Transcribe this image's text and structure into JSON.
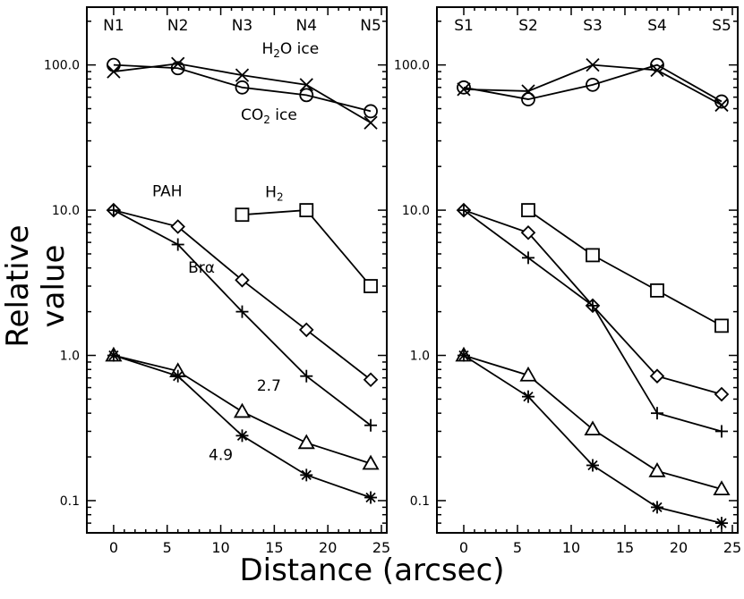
{
  "ylabel": "Relative value",
  "xlabel": "Distance (arcsec)",
  "chart_data": [
    {
      "type": "line",
      "panel": "north",
      "yscale": "log",
      "ylim": [
        0.06,
        250
      ],
      "xlim": [
        -2.5,
        25.5
      ],
      "xticks": [
        0,
        5,
        10,
        15,
        20,
        25
      ],
      "yticks": [
        0.1,
        1.0,
        10.0,
        100.0
      ],
      "ytick_labels": [
        "0.1",
        "1.0",
        "10.0",
        "100.0"
      ],
      "top_labels": [
        {
          "x": 0,
          "text": "N1"
        },
        {
          "x": 6,
          "text": "N2"
        },
        {
          "x": 12,
          "text": "N3"
        },
        {
          "x": 18,
          "text": "N4"
        },
        {
          "x": 24,
          "text": "N5"
        }
      ],
      "series": [
        {
          "name": "H2O ice",
          "marker": "x",
          "x": [
            0,
            6,
            12,
            18,
            24
          ],
          "y": [
            90,
            102,
            85,
            73,
            40
          ]
        },
        {
          "name": "CO2 ice",
          "marker": "circle",
          "x": [
            0,
            6,
            12,
            18,
            24
          ],
          "y": [
            100,
            95,
            70,
            62,
            48
          ]
        },
        {
          "name": "H2",
          "marker": "square",
          "x": [
            12,
            18,
            24
          ],
          "y": [
            9.3,
            10.0,
            3.0
          ]
        },
        {
          "name": "PAH",
          "marker": "diamond",
          "x": [
            0,
            6,
            12,
            18,
            24
          ],
          "y": [
            10.0,
            7.7,
            3.3,
            1.5,
            0.68
          ]
        },
        {
          "name": "Brα",
          "marker": "plus",
          "x": [
            0,
            6,
            12,
            18,
            24
          ],
          "y": [
            10.0,
            5.8,
            2.0,
            0.72,
            0.33
          ]
        },
        {
          "name": "2.7",
          "marker": "triangle",
          "x": [
            0,
            6,
            12,
            18,
            24
          ],
          "y": [
            1.0,
            0.78,
            0.41,
            0.25,
            0.18
          ]
        },
        {
          "name": "4.9",
          "marker": "asterisk",
          "x": [
            0,
            6,
            12,
            18,
            24
          ],
          "y": [
            1.0,
            0.72,
            0.28,
            0.15,
            0.105
          ]
        }
      ],
      "annotations": [
        {
          "text": "H2O ice",
          "x": 16.5,
          "y": 120
        },
        {
          "text": "CO2 ice",
          "x": 14.5,
          "y": 42
        },
        {
          "text": "PAH",
          "x": 5.0,
          "y": 12.5
        },
        {
          "text": "H2",
          "x": 15.0,
          "y": 12.3
        },
        {
          "text": "Brα",
          "x": 8.2,
          "y": 3.7
        },
        {
          "text": "2.7",
          "x": 14.5,
          "y": 0.57
        },
        {
          "text": "4.9",
          "x": 10.0,
          "y": 0.19
        }
      ]
    },
    {
      "type": "line",
      "panel": "south",
      "yscale": "log",
      "ylim": [
        0.06,
        250
      ],
      "xlim": [
        -2.5,
        25.5
      ],
      "xticks": [
        0,
        5,
        10,
        15,
        20,
        25
      ],
      "yticks": [
        0.1,
        1.0,
        10.0,
        100.0
      ],
      "ytick_labels": [
        "0.1",
        "1.0",
        "10.0",
        "100.0"
      ],
      "top_labels": [
        {
          "x": 0,
          "text": "S1"
        },
        {
          "x": 6,
          "text": "S2"
        },
        {
          "x": 12,
          "text": "S3"
        },
        {
          "x": 18,
          "text": "S4"
        },
        {
          "x": 24,
          "text": "S5"
        }
      ],
      "series": [
        {
          "name": "H2O ice",
          "marker": "x",
          "x": [
            0,
            6,
            12,
            18,
            24
          ],
          "y": [
            68,
            66,
            100,
            92,
            53
          ]
        },
        {
          "name": "CO2 ice",
          "marker": "circle",
          "x": [
            0,
            6,
            12,
            18,
            24
          ],
          "y": [
            70,
            58,
            73,
            100,
            56
          ]
        },
        {
          "name": "H2",
          "marker": "square",
          "x": [
            6,
            12,
            18,
            24
          ],
          "y": [
            10.0,
            4.9,
            2.8,
            1.6
          ]
        },
        {
          "name": "PAH",
          "marker": "diamond",
          "x": [
            0,
            6,
            12,
            18,
            24
          ],
          "y": [
            10.0,
            7.0,
            2.2,
            0.72,
            0.54
          ]
        },
        {
          "name": "Brα",
          "marker": "plus",
          "x": [
            0,
            6,
            12,
            18,
            24
          ],
          "y": [
            10.0,
            4.7,
            2.2,
            0.4,
            0.3
          ]
        },
        {
          "name": "2.7",
          "marker": "triangle",
          "x": [
            0,
            6,
            12,
            18,
            24
          ],
          "y": [
            1.0,
            0.73,
            0.31,
            0.16,
            0.12
          ]
        },
        {
          "name": "4.9",
          "marker": "asterisk",
          "x": [
            0,
            6,
            12,
            18,
            24
          ],
          "y": [
            1.0,
            0.52,
            0.175,
            0.09,
            0.07
          ]
        }
      ],
      "annotations": []
    }
  ]
}
